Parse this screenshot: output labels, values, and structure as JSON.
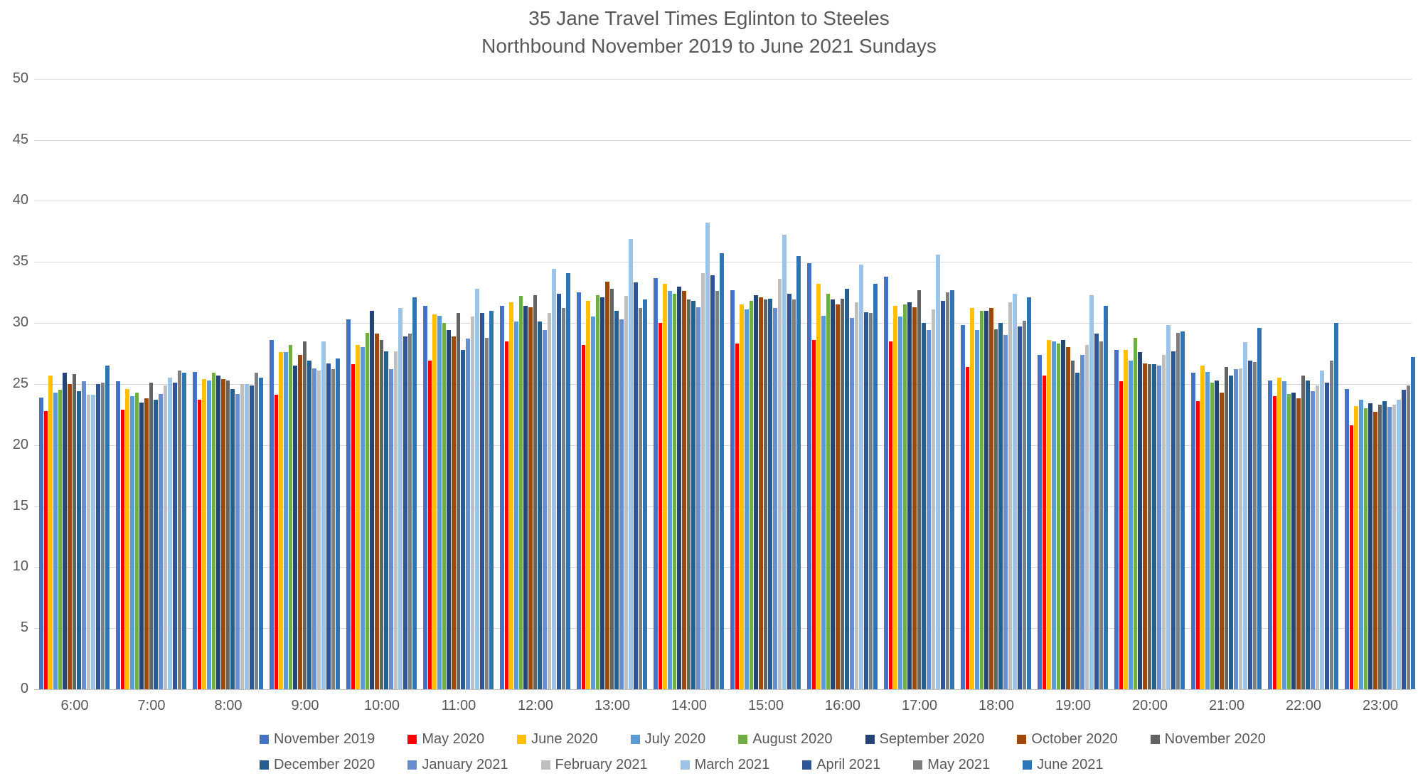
{
  "title": {
    "line1": "35 Jane Travel Times Eglinton to Steeles",
    "line2": "Northbound November 2019 to June 2021 Sundays"
  },
  "chart_data": {
    "type": "bar",
    "title": "35 Jane Travel Times Eglinton to Steeles Northbound November 2019 to June 2021 Sundays",
    "xlabel": "",
    "ylabel": "",
    "ylim": [
      0,
      50
    ],
    "ytick_step": 5,
    "grid": true,
    "legend_position": "bottom",
    "categories": [
      "6:00",
      "7:00",
      "8:00",
      "9:00",
      "10:00",
      "11:00",
      "12:00",
      "13:00",
      "14:00",
      "15:00",
      "16:00",
      "17:00",
      "18:00",
      "19:00",
      "20:00",
      "21:00",
      "22:00",
      "23:00"
    ],
    "series": [
      {
        "name": "November 2019",
        "color": "#4472C4",
        "values": [
          23.9,
          25.2,
          26.0,
          28.6,
          30.3,
          31.4,
          31.4,
          32.5,
          33.7,
          32.7,
          34.9,
          33.8,
          29.8,
          27.4,
          27.8,
          25.9,
          25.3,
          24.6
        ]
      },
      {
        "name": "May 2020",
        "color": "#FF0000",
        "values": [
          22.8,
          22.9,
          23.7,
          24.1,
          26.6,
          26.9,
          28.5,
          28.2,
          30.0,
          28.3,
          28.6,
          28.5,
          26.4,
          25.7,
          25.2,
          23.6,
          24.0,
          21.6
        ]
      },
      {
        "name": "June 2020",
        "color": "#FFC000",
        "values": [
          25.7,
          24.6,
          25.4,
          27.6,
          28.2,
          30.7,
          31.7,
          31.8,
          33.2,
          31.5,
          33.2,
          31.4,
          31.2,
          28.6,
          27.8,
          26.5,
          25.5,
          23.2
        ]
      },
      {
        "name": "July 2020",
        "color": "#5B9BD5",
        "values": [
          24.3,
          24.0,
          25.3,
          27.6,
          28.0,
          30.6,
          30.1,
          30.5,
          32.6,
          31.1,
          30.6,
          30.5,
          29.4,
          28.5,
          26.9,
          26.0,
          25.2,
          23.7
        ]
      },
      {
        "name": "August 2020",
        "color": "#70AD47",
        "values": [
          24.5,
          24.3,
          25.9,
          28.2,
          29.2,
          30.0,
          32.2,
          32.3,
          32.4,
          31.8,
          32.4,
          31.5,
          31.0,
          28.3,
          28.8,
          25.1,
          24.2,
          23.0
        ]
      },
      {
        "name": "September 2020",
        "color": "#264478",
        "values": [
          25.9,
          23.5,
          25.7,
          26.5,
          31.0,
          29.4,
          31.4,
          32.1,
          33.0,
          32.3,
          31.9,
          31.7,
          31.0,
          28.6,
          27.6,
          25.3,
          24.3,
          23.4
        ]
      },
      {
        "name": "October 2020",
        "color": "#9E480E",
        "values": [
          25.0,
          23.8,
          25.4,
          27.4,
          29.1,
          28.9,
          31.3,
          33.4,
          32.6,
          32.1,
          31.5,
          31.3,
          31.2,
          28.0,
          26.7,
          24.3,
          23.8,
          22.7
        ]
      },
      {
        "name": "November 2020",
        "color": "#636363",
        "values": [
          25.8,
          25.1,
          25.3,
          28.5,
          28.6,
          30.8,
          32.3,
          32.8,
          31.9,
          31.9,
          32.0,
          32.7,
          29.5,
          26.9,
          26.6,
          26.4,
          25.7,
          23.3
        ]
      },
      {
        "name": "December 2020",
        "color": "#255E91",
        "values": [
          24.4,
          23.7,
          24.6,
          26.9,
          27.7,
          27.8,
          30.1,
          31.0,
          31.8,
          32.0,
          32.8,
          30.0,
          30.0,
          25.9,
          26.6,
          25.7,
          25.3,
          23.6
        ]
      },
      {
        "name": "January 2021",
        "color": "#698ED0",
        "values": [
          25.2,
          24.2,
          24.2,
          26.3,
          26.2,
          28.7,
          29.4,
          30.3,
          31.3,
          31.2,
          30.4,
          29.4,
          29.0,
          27.4,
          26.5,
          26.2,
          24.4,
          23.1
        ]
      },
      {
        "name": "February 2021",
        "color": "#BFBFBF",
        "values": [
          24.1,
          24.9,
          25.0,
          26.1,
          27.7,
          30.5,
          30.8,
          32.2,
          34.1,
          33.6,
          31.7,
          31.1,
          31.7,
          28.2,
          27.4,
          26.3,
          24.9,
          23.3
        ]
      },
      {
        "name": "March 2021",
        "color": "#9DC3E6",
        "values": [
          24.1,
          25.5,
          25.0,
          28.5,
          31.2,
          32.8,
          34.4,
          36.9,
          38.2,
          37.2,
          34.8,
          35.6,
          32.4,
          32.3,
          29.8,
          28.4,
          26.1,
          23.7
        ]
      },
      {
        "name": "April 2021",
        "color": "#2F5597",
        "values": [
          25.0,
          25.1,
          24.9,
          26.7,
          28.9,
          30.8,
          32.4,
          33.3,
          33.9,
          32.4,
          30.9,
          31.8,
          29.7,
          29.1,
          27.7,
          26.9,
          25.1,
          24.5
        ]
      },
      {
        "name": "May 2021",
        "color": "#7F7F7F",
        "values": [
          25.1,
          26.1,
          25.9,
          26.2,
          29.1,
          28.8,
          31.2,
          31.2,
          32.6,
          31.9,
          30.8,
          32.5,
          30.2,
          28.5,
          29.2,
          26.8,
          26.9,
          24.9
        ]
      },
      {
        "name": "June 2021",
        "color": "#2E75B6",
        "values": [
          26.5,
          25.9,
          25.5,
          27.1,
          32.1,
          31.0,
          34.1,
          31.9,
          35.7,
          35.5,
          33.2,
          32.7,
          32.1,
          31.4,
          29.3,
          29.6,
          30.0,
          27.2
        ]
      }
    ],
    "legend_rows": [
      8,
      7
    ]
  }
}
